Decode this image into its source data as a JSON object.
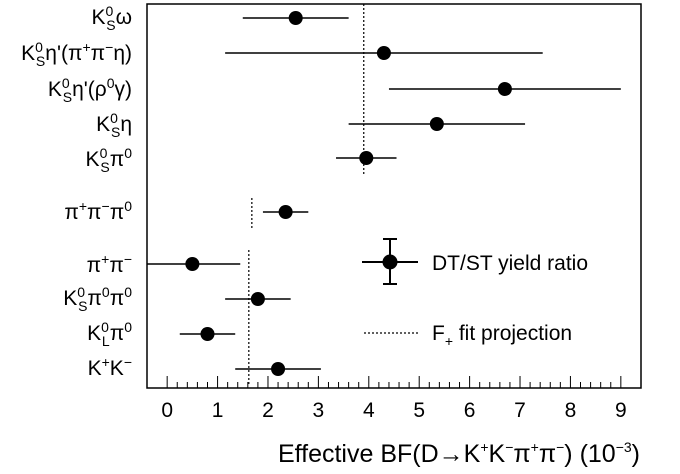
{
  "chart_data": {
    "type": "scatter",
    "xlabel": "Effective BF(D→K⁺K⁻π⁺π⁻) (10⁻³)",
    "xlabel_parts": {
      "main": "Effective BF(D",
      "arrow": "→",
      "k1": "K",
      "k1_sup": "+",
      "k2": "K",
      "k2_sup": "−",
      "p1": "π",
      "p1_sup": "+",
      "p2": "π",
      "p2_sup": "−",
      "tail": ") (10",
      "exp": "−3",
      "close": ")"
    },
    "xlim": [
      -0.4,
      9.4
    ],
    "xticks": [
      "0",
      "1",
      "2",
      "3",
      "4",
      "5",
      "6",
      "7",
      "8",
      "9"
    ],
    "grid": false,
    "legend_position": "right",
    "legend": {
      "points": "DT/ST yield ratio",
      "line": "F₊ fit projection",
      "line_main": "F",
      "line_sub": "+",
      "line_rest": " fit projection"
    },
    "categories": [
      {
        "label": "K⁰Sω",
        "value": 2.55,
        "err_lo": 1.05,
        "err_hi": 1.05
      },
      {
        "label": "K⁰Sη′(π⁺π⁻η)",
        "value": 4.3,
        "err_lo": 3.15,
        "err_hi": 3.15
      },
      {
        "label": "K⁰Sη′(ρ⁰γ)",
        "value": 6.7,
        "err_lo": 2.3,
        "err_hi": 2.3
      },
      {
        "label": "K⁰Sη",
        "value": 5.35,
        "err_lo": 1.75,
        "err_hi": 1.75
      },
      {
        "label": "K⁰Sπ⁰",
        "value": 3.95,
        "err_lo": 0.6,
        "err_hi": 0.6
      },
      {
        "label": "π⁺π⁻π⁰",
        "value": 2.35,
        "err_lo": 0.45,
        "err_hi": 0.45
      },
      {
        "label": "π⁺π⁻",
        "value": 0.5,
        "err_lo": 0.95,
        "err_hi": 0.95
      },
      {
        "label": "K⁰Sπ⁰π⁰",
        "value": 1.8,
        "err_lo": 0.65,
        "err_hi": 0.65
      },
      {
        "label": "K⁰Lπ⁰",
        "value": 0.8,
        "err_lo": 0.55,
        "err_hi": 0.55
      },
      {
        "label": "K⁺K⁻",
        "value": 2.2,
        "err_lo": 0.85,
        "err_hi": 0.85
      }
    ],
    "projections": [
      {
        "value": 3.9,
        "from_category": 0,
        "to_category": 4
      },
      {
        "value": 1.68,
        "from_category": 5,
        "to_category": 5
      },
      {
        "value": 1.62,
        "from_category": 6,
        "to_category": 9
      }
    ]
  }
}
